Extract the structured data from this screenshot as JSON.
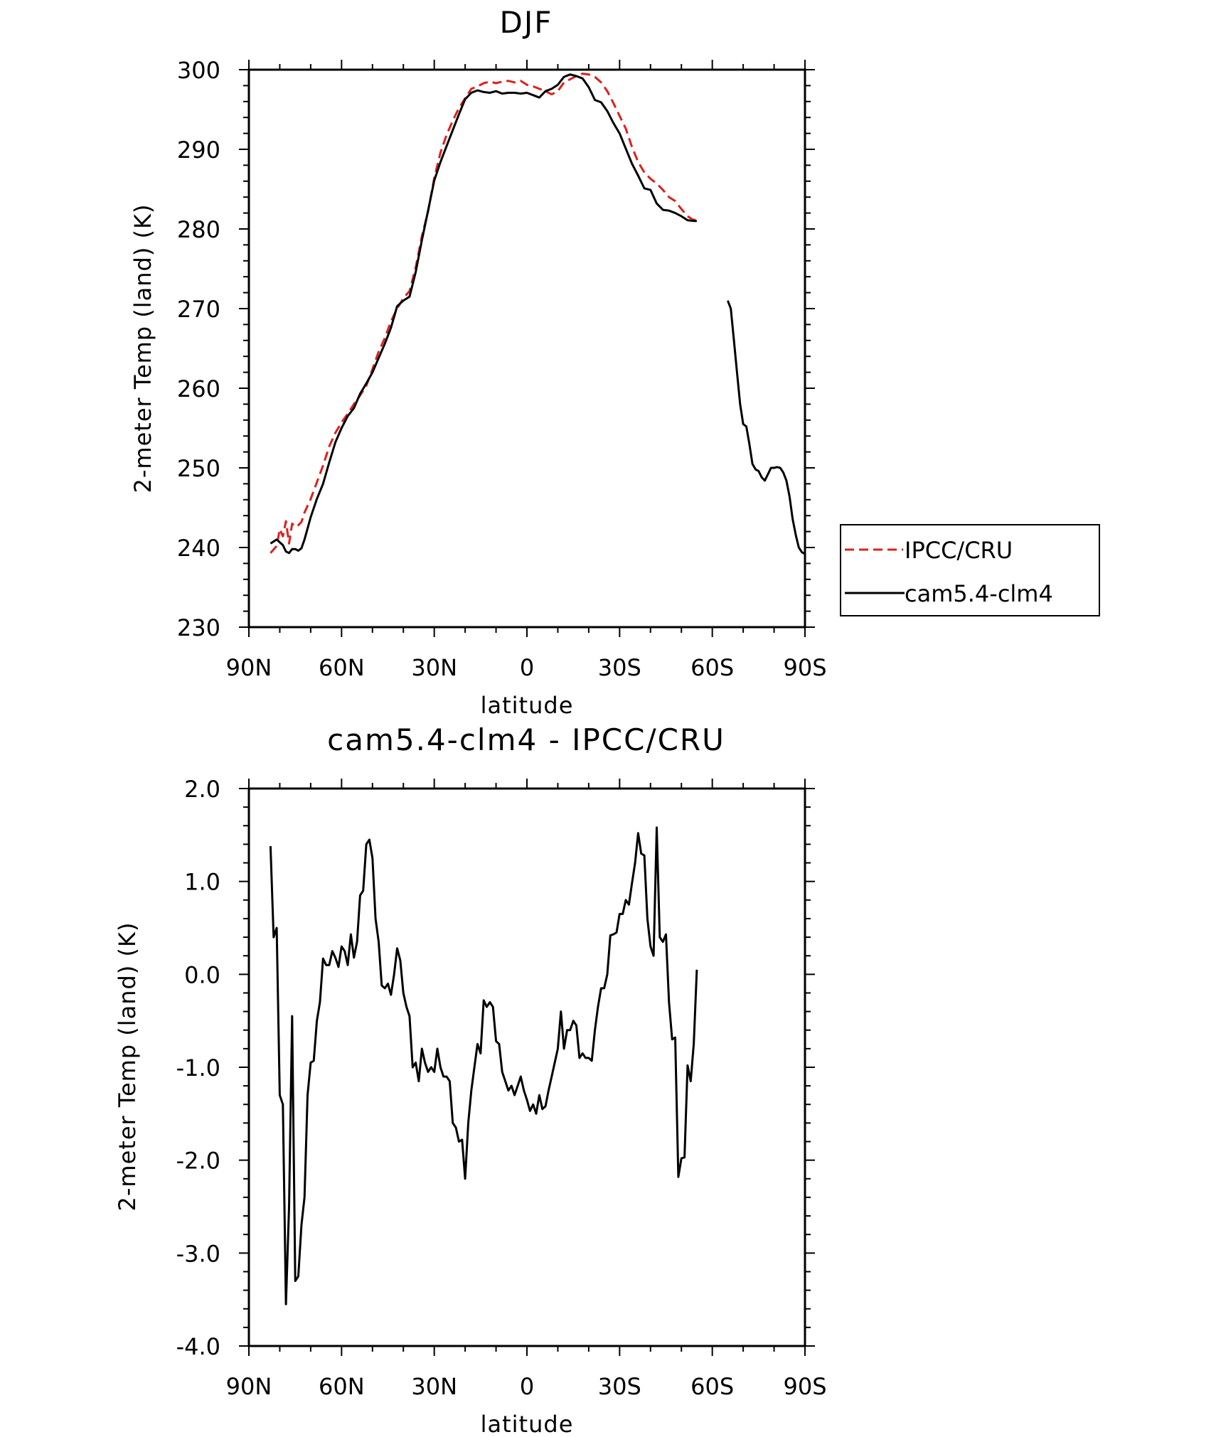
{
  "chart_data": [
    {
      "type": "line",
      "title": "DJF",
      "xlabel": "latitude",
      "ylabel": "2-meter Temp (land) (K)",
      "xlim": [
        90,
        -90
      ],
      "ylim": [
        230,
        300
      ],
      "x_tick_values": [
        90,
        60,
        30,
        0,
        -30,
        -60,
        -90
      ],
      "x_tick_labels": [
        "90N",
        "60N",
        "30N",
        "0",
        "30S",
        "60S",
        "90S"
      ],
      "y_tick_values": [
        230,
        240,
        250,
        260,
        270,
        280,
        290,
        300
      ],
      "y_tick_labels": [
        "230",
        "240",
        "250",
        "260",
        "270",
        "280",
        "290",
        "300"
      ],
      "grid": false,
      "legend_position": "right",
      "series": [
        {
          "name": "IPCC/CRU",
          "color": "#e0201b",
          "dash": "dashed",
          "segments": [
            {
              "x": [
                83,
                81,
                80,
                79,
                78,
                77,
                76,
                75,
                74,
                73,
                72,
                70,
                68,
                66,
                64,
                62,
                60,
                58,
                56,
                54,
                52,
                50,
                48,
                46,
                44,
                42,
                40,
                38,
                36,
                34,
                32,
                30,
                28,
                26,
                24,
                22,
                20,
                18,
                16,
                14,
                12,
                10,
                8,
                6,
                4,
                2,
                0,
                -2,
                -4,
                -6,
                -8,
                -10,
                -12,
                -14,
                -16,
                -18,
                -20,
                -22,
                -24,
                -26,
                -28,
                -30,
                -32,
                -34,
                -36,
                -38,
                -40,
                -42,
                -44,
                -46,
                -48,
                -50,
                -52,
                -54,
                -55
              ],
              "y": [
                239.3,
                240.2,
                242.3,
                241.4,
                243.3,
                240.5,
                243.0,
                242.6,
                242.8,
                243.2,
                244.4,
                246.1,
                248.2,
                250.3,
                252.7,
                254.4,
                255.7,
                256.8,
                258.0,
                259.1,
                260.3,
                262.4,
                264.6,
                266.3,
                268.4,
                270.0,
                271.3,
                272.2,
                275.2,
                279.1,
                282.2,
                286.4,
                289.6,
                291.8,
                293.6,
                295.2,
                296.4,
                297.6,
                297.9,
                298.3,
                298.5,
                298.3,
                298.5,
                298.6,
                298.4,
                298.6,
                298.1,
                297.9,
                297.6,
                297.3,
                296.9,
                297.3,
                298.4,
                298.8,
                299.2,
                299.5,
                299.4,
                299.1,
                298.4,
                297.3,
                295.8,
                294.2,
                292.6,
                290.3,
                288.4,
                287.1,
                286.3,
                285.7,
                284.9,
                284.0,
                283.5,
                282.5,
                281.6,
                281.1,
                281.3
              ]
            }
          ]
        },
        {
          "name": "cam5.4-clm4",
          "color": "#000000",
          "dash": "solid",
          "segments": [
            {
              "x": [
                83,
                81,
                79,
                78,
                77,
                76,
                75,
                74,
                73,
                72,
                70,
                68,
                66,
                64,
                62,
                60,
                58,
                56,
                54,
                52,
                50,
                48,
                46,
                44,
                42,
                40,
                38,
                36,
                34,
                32,
                30,
                28,
                26,
                24,
                22,
                20,
                18,
                16,
                14,
                12,
                10,
                8,
                6,
                4,
                2,
                0,
                -2,
                -4,
                -6,
                -8,
                -10,
                -12,
                -14,
                -16,
                -18,
                -20,
                -22,
                -24,
                -26,
                -28,
                -30,
                -32,
                -34,
                -36,
                -38,
                -40,
                -42,
                -44,
                -46,
                -48,
                -50,
                -52,
                -54,
                -55
              ],
              "y": [
                240.5,
                241.0,
                240.3,
                239.5,
                239.3,
                239.8,
                239.8,
                239.6,
                239.9,
                241.0,
                243.8,
                246.1,
                248.0,
                250.7,
                253.2,
                255.0,
                256.5,
                257.5,
                259.3,
                260.6,
                262.0,
                263.8,
                265.6,
                267.6,
                270.3,
                271.0,
                271.5,
                274.6,
                278.6,
                282.3,
                286.1,
                288.4,
                290.4,
                292.4,
                294.4,
                296.3,
                297.1,
                297.4,
                297.2,
                297.1,
                297.3,
                297.0,
                297.1,
                297.1,
                297.0,
                297.1,
                296.8,
                296.5,
                297.3,
                297.6,
                298.1,
                299.1,
                299.4,
                299.2,
                298.9,
                297.8,
                296.2,
                295.9,
                294.8,
                293.3,
                292.0,
                290.1,
                288.2,
                286.7,
                285.1,
                284.9,
                283.2,
                282.4,
                282.3,
                282.0,
                281.6,
                281.1,
                281.0,
                281.0
              ]
            },
            {
              "x": [
                -65,
                -66,
                -67,
                -68,
                -69,
                -70,
                -71,
                -72,
                -73,
                -74,
                -75,
                -76,
                -77,
                -78,
                -79,
                -80,
                -81,
                -82,
                -83,
                -84,
                -85,
                -86,
                -87,
                -88,
                -89,
                -90
              ],
              "y": [
                271.0,
                270.0,
                266.0,
                262.0,
                258.0,
                255.5,
                255.2,
                253.0,
                250.5,
                249.8,
                249.6,
                248.8,
                248.4,
                249.2,
                250.0,
                250.0,
                250.1,
                250.0,
                249.4,
                248.4,
                246.4,
                243.6,
                241.6,
                240.0,
                239.4,
                239.2
              ]
            }
          ]
        }
      ]
    },
    {
      "type": "line",
      "title": "cam5.4-clm4 - IPCC/CRU",
      "xlabel": "latitude",
      "ylabel": "2-meter Temp (land) (K)",
      "xlim": [
        90,
        -90
      ],
      "ylim": [
        -4.0,
        2.0
      ],
      "x_tick_values": [
        90,
        60,
        30,
        0,
        -30,
        -60,
        -90
      ],
      "x_tick_labels": [
        "90N",
        "60N",
        "30N",
        "0",
        "30S",
        "60S",
        "90S"
      ],
      "y_tick_values": [
        -4.0,
        -3.0,
        -2.0,
        -1.0,
        0.0,
        1.0,
        2.0
      ],
      "y_tick_labels": [
        "-4.0",
        "-3.0",
        "-2.0",
        "-1.0",
        "0.0",
        "1.0",
        "2.0"
      ],
      "grid": false,
      "series": [
        {
          "color": "#000000",
          "dash": "solid",
          "segments": [
            {
              "x": [
                83,
                82,
                81,
                80,
                79,
                78,
                77,
                76,
                75,
                74,
                73,
                72,
                71,
                70,
                69,
                68,
                67,
                66,
                65,
                64,
                63,
                62,
                61,
                60,
                59,
                58,
                57,
                56,
                55,
                54,
                53,
                52,
                51,
                50,
                49,
                48,
                47,
                46,
                45,
                44,
                43,
                42,
                41,
                40,
                39,
                38,
                37,
                36,
                35,
                34,
                33,
                32,
                31,
                30,
                29,
                28,
                27,
                26,
                25,
                24,
                23,
                22,
                21,
                20,
                19,
                18,
                17,
                16,
                15,
                14,
                13,
                12,
                11,
                10,
                9,
                8,
                7,
                6,
                5,
                4,
                3,
                2,
                1,
                0,
                -1,
                -2,
                -3,
                -4,
                -5,
                -6,
                -7,
                -8,
                -9,
                -10,
                -11,
                -12,
                -13,
                -14,
                -15,
                -16,
                -17,
                -18,
                -19,
                -20,
                -21,
                -22,
                -23,
                -24,
                -25,
                -26,
                -27,
                -28,
                -29,
                -30,
                -31,
                -32,
                -33,
                -34,
                -35,
                -36,
                -37,
                -38,
                -39,
                -40,
                -41,
                -42,
                -43,
                -44,
                -45,
                -46,
                -47,
                -48,
                -49,
                -50,
                -51,
                -52,
                -53,
                -54,
                -55
              ],
              "y": [
                1.38,
                0.4,
                0.5,
                -1.3,
                -1.4,
                -3.55,
                -2.5,
                -0.45,
                -3.3,
                -3.25,
                -2.7,
                -2.4,
                -1.3,
                -0.95,
                -0.93,
                -0.5,
                -0.3,
                0.17,
                0.1,
                0.1,
                0.25,
                0.18,
                0.08,
                0.3,
                0.25,
                0.1,
                0.43,
                0.18,
                0.35,
                0.85,
                0.9,
                1.4,
                1.45,
                1.25,
                0.6,
                0.35,
                -0.12,
                -0.15,
                -0.1,
                -0.22,
                0.0,
                0.28,
                0.15,
                -0.2,
                -0.35,
                -0.45,
                -1.0,
                -0.95,
                -1.15,
                -0.8,
                -0.95,
                -1.05,
                -1.0,
                -1.05,
                -0.8,
                -1.0,
                -1.1,
                -1.1,
                -1.15,
                -1.6,
                -1.65,
                -1.8,
                -1.78,
                -2.2,
                -1.6,
                -1.25,
                -1.0,
                -0.75,
                -0.85,
                -0.28,
                -0.35,
                -0.3,
                -0.35,
                -0.72,
                -0.75,
                -1.05,
                -1.15,
                -1.25,
                -1.2,
                -1.3,
                -1.2,
                -1.1,
                -1.25,
                -1.35,
                -1.47,
                -1.4,
                -1.5,
                -1.3,
                -1.45,
                -1.42,
                -1.25,
                -1.1,
                -0.95,
                -0.8,
                -0.4,
                -0.8,
                -0.6,
                -0.6,
                -0.5,
                -0.55,
                -0.9,
                -0.85,
                -0.9,
                -0.9,
                -0.93,
                -0.6,
                -0.35,
                -0.15,
                -0.15,
                0.0,
                0.42,
                0.43,
                0.45,
                0.65,
                0.65,
                0.8,
                0.75,
                0.98,
                1.2,
                1.52,
                1.3,
                1.28,
                0.6,
                0.3,
                0.2,
                1.58,
                0.4,
                0.35,
                0.43,
                -0.3,
                -0.7,
                -0.68,
                -2.18,
                -1.98,
                -1.97,
                -0.98,
                -1.15,
                -0.75,
                0.05
              ]
            }
          ]
        }
      ]
    }
  ]
}
